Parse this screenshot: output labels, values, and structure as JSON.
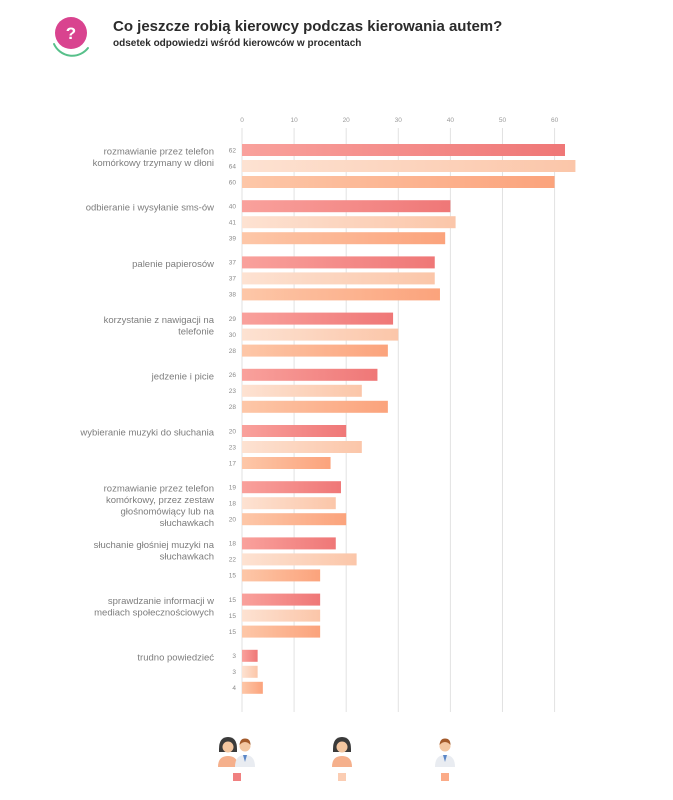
{
  "header": {
    "title": "Co jeszcze robią kierowcy podczas kierowania autem?",
    "subtitle": "odsetek odpowiedzi wśród kierowców w procentach"
  },
  "logo": {
    "glyph": "?",
    "icon": "question-icon",
    "color": "#d9438f",
    "ring_color": "#57c08a"
  },
  "legend": {
    "items": [
      {
        "icon": "woman-and-man-icon",
        "color": "#f08080"
      },
      {
        "icon": "woman-icon",
        "color": "#fbcdb3"
      },
      {
        "icon": "man-icon",
        "color": "#fbab88"
      }
    ]
  },
  "chart_data": {
    "type": "bar",
    "orientation": "horizontal",
    "xlim": [
      0,
      62
    ],
    "xticks": [
      0,
      10,
      20,
      30,
      40,
      50,
      60
    ],
    "grid": true,
    "legend_position": "bottom",
    "categories": [
      "rozmawianie przez telefon komórkowy trzymany w dłoni",
      "odbieranie i wysyłanie sms-ów",
      "palenie papierosów",
      "korzystanie z nawigacji na telefonie",
      "jedzenie i picie",
      "wybieranie muzyki do słuchania",
      "rozmawianie przez telefon komórkowy, przez zestaw głośnomówiący lub na słuchawkach",
      "słuchanie głośniej muzyki na słuchawkach",
      "sprawdzanie informacji w mediach społecznościowych",
      "trudno powiedzieć"
    ],
    "category_lines": [
      [
        "rozmawianie przez telefon",
        "komórkowy trzymany w dłoni"
      ],
      [
        "odbieranie i wysyłanie sms-ów"
      ],
      [
        "palenie papierosów"
      ],
      [
        "korzystanie z nawigacji na",
        "telefonie"
      ],
      [
        "jedzenie i picie"
      ],
      [
        "wybieranie muzyki do słuchania"
      ],
      [
        "rozmawianie przez telefon",
        "komórkowy, przez zestaw",
        "głośnomówiący lub na",
        "słuchawkach"
      ],
      [
        "słuchanie głośniej muzyki na",
        "słuchawkach"
      ],
      [
        "sprawdzanie informacji w",
        "mediach społecznościowych"
      ],
      [
        "trudno powiedzieć"
      ]
    ],
    "series": [
      {
        "values": [
          62,
          40,
          37,
          29,
          26,
          20,
          19,
          18,
          15,
          3
        ],
        "color": "#ef7777",
        "color_light": "#f9a19c"
      },
      {
        "values": [
          64,
          41,
          37,
          30,
          23,
          23,
          18,
          22,
          15,
          3
        ],
        "color": "#fbc6a9",
        "color_light": "#fde2d2"
      },
      {
        "values": [
          60,
          39,
          38,
          28,
          28,
          17,
          20,
          15,
          15,
          4
        ],
        "color": "#fba37c",
        "color_light": "#fdc7a8"
      }
    ]
  }
}
